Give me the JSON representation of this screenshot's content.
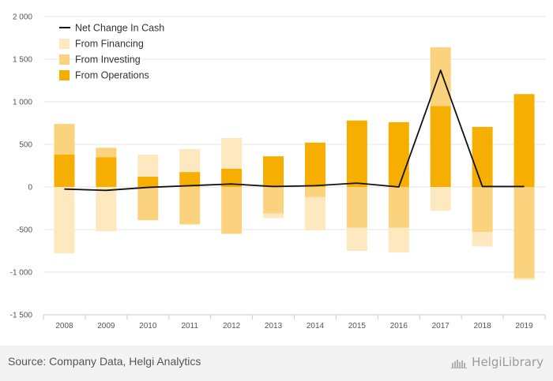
{
  "chart_data": {
    "type": "bar",
    "stacked": true,
    "categories": [
      "2008",
      "2009",
      "2010",
      "2011",
      "2012",
      "2013",
      "2014",
      "2015",
      "2016",
      "2017",
      "2018",
      "2019"
    ],
    "series": [
      {
        "name": "From Operations",
        "kind": "bar",
        "color": "#f6ae00",
        "values": [
          380,
          350,
          120,
          175,
          215,
          360,
          520,
          780,
          760,
          950,
          705,
          1090
        ]
      },
      {
        "name": "From Investing",
        "kind": "bar",
        "color": "#fbd37f",
        "values": [
          360,
          110,
          -390,
          -440,
          -550,
          -310,
          -120,
          -480,
          -480,
          690,
          -530,
          -1070
        ]
      },
      {
        "name": "From Financing",
        "kind": "bar",
        "color": "#fde8c0",
        "values": [
          -780,
          -520,
          260,
          270,
          360,
          -55,
          -390,
          -270,
          -290,
          -280,
          -170,
          -20
        ]
      },
      {
        "name": "Net Change In Cash",
        "kind": "line",
        "color": "#111111",
        "values": [
          -25,
          -40,
          -5,
          15,
          35,
          5,
          15,
          45,
          0,
          1370,
          5,
          5
        ]
      }
    ],
    "ylim": [
      -1500,
      2000
    ],
    "yticks": [
      -1500,
      -1000,
      -500,
      0,
      500,
      1000,
      1500,
      2000
    ],
    "ytick_labels": [
      "-1 500",
      "-1 000",
      "-500",
      "0",
      "500",
      "1 000",
      "1 500",
      "2 000"
    ],
    "grid": true,
    "legend_position": "top-left",
    "title": "",
    "xlabel": "",
    "ylabel": ""
  },
  "legend": [
    {
      "label": "Net Change In Cash",
      "swatch": "line",
      "color": "#111111"
    },
    {
      "label": "From Financing",
      "swatch": "box",
      "color": "#fde8c0"
    },
    {
      "label": "From Investing",
      "swatch": "box",
      "color": "#fbd37f"
    },
    {
      "label": "From Operations",
      "swatch": "box",
      "color": "#f6ae00"
    }
  ],
  "footer": {
    "source": "Source: Company Data, Helgi Analytics",
    "brand": "HelgiLibrary"
  }
}
